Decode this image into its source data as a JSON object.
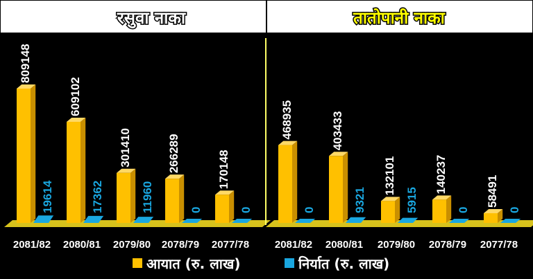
{
  "colors": {
    "import_face": "#ffc000",
    "import_side": "#c98f00",
    "import_top": "#ffd966",
    "export_face": "#1aa7e0",
    "export_side": "#0f74a0",
    "floor": "#d7c21c",
    "divider": "#ffff66",
    "title_left": "#ffffff",
    "title_right": "#ffff00"
  },
  "legend": {
    "import_label": "आयात (रु. लाख)",
    "export_label": "निर्यात (रु. लाख)"
  },
  "chart_data": [
    {
      "type": "bar",
      "title": "रसुवा नाका",
      "categories": [
        "2081/82",
        "2080/81",
        "2079/80",
        "2078/79",
        "2077/78"
      ],
      "series": [
        {
          "name": "आयात (रु. लाख)",
          "values": [
            809148,
            609102,
            301410,
            266289,
            170148
          ]
        },
        {
          "name": "निर्यात (रु. लाख)",
          "values": [
            19614,
            17362,
            11960,
            0,
            0
          ]
        }
      ]
    },
    {
      "type": "bar",
      "title": "तातोपानी नाका",
      "categories": [
        "2081/82",
        "2080/81",
        "2079/80",
        "2078/79",
        "2077/78"
      ],
      "series": [
        {
          "name": "आयात (रु. लाख)",
          "values": [
            468935,
            403433,
            132101,
            140237,
            58491
          ]
        },
        {
          "name": "निर्यात (रु. लाख)",
          "values": [
            0,
            9321,
            5915,
            0,
            0
          ]
        }
      ]
    }
  ]
}
